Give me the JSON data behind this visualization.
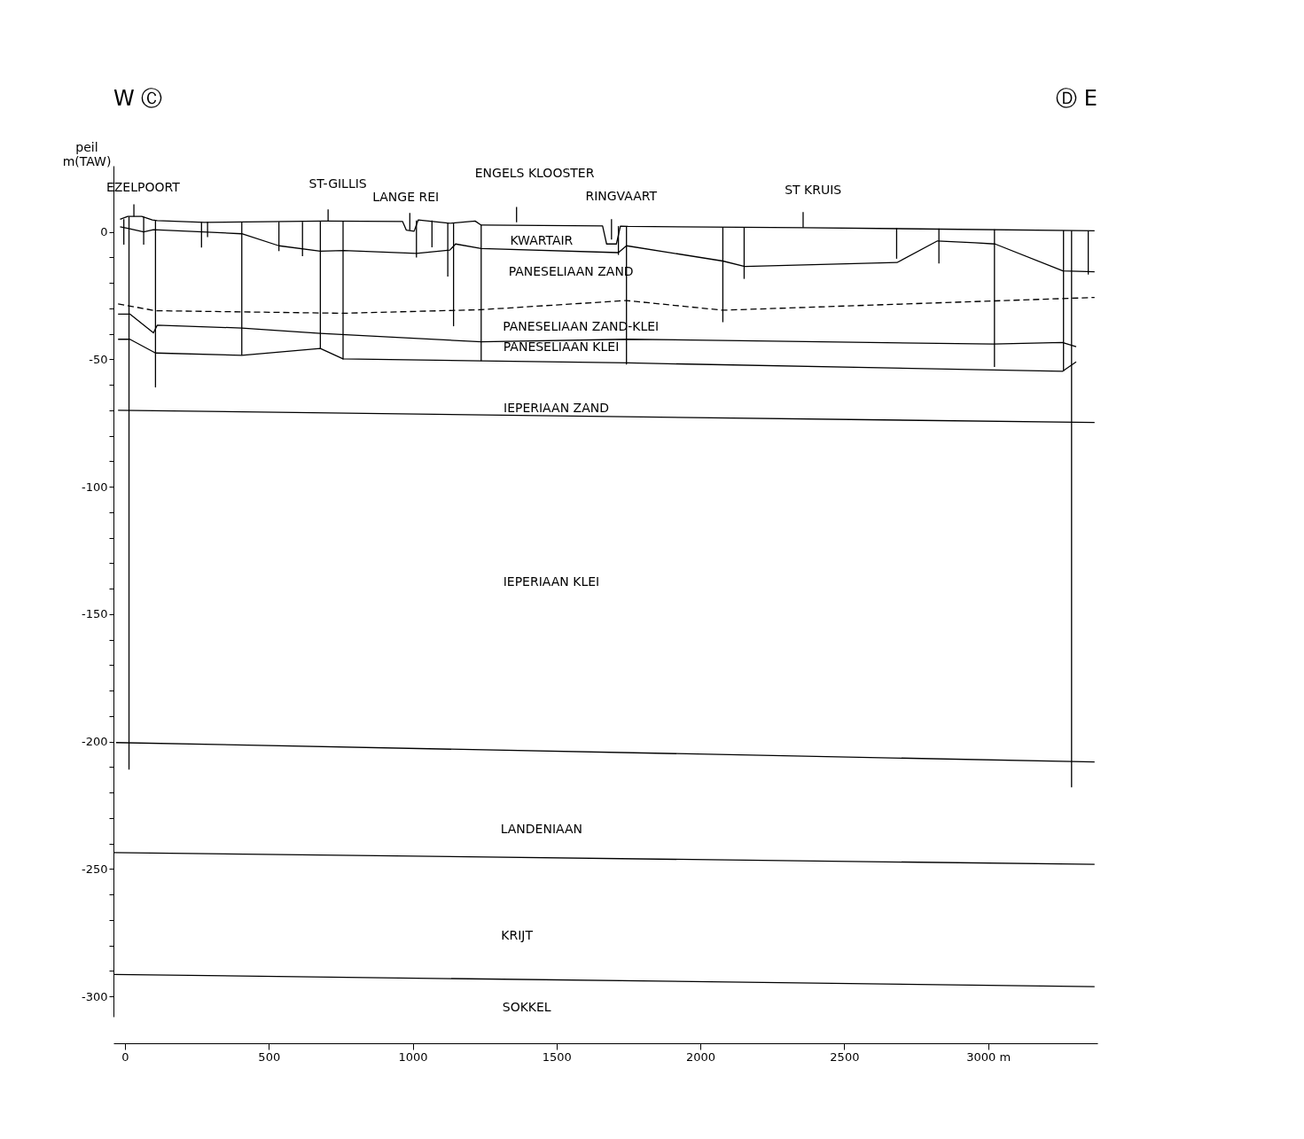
{
  "chart_data": {
    "type": "line",
    "ylabel": "peil m(TAW)",
    "xlim": [
      -40,
      3380
    ],
    "ylim": [
      -308,
      26
    ],
    "xticks": [
      0,
      500,
      1000,
      1500,
      2000,
      2500,
      {
        "value": 3000,
        "label": "3000 m"
      }
    ],
    "yticks": [
      0,
      {
        "value": -10,
        "label": null
      },
      {
        "value": -20,
        "label": null
      },
      {
        "value": -30,
        "label": null
      },
      {
        "value": -40,
        "label": null
      },
      -50,
      {
        "value": -60,
        "label": null
      },
      {
        "value": -70,
        "label": null
      },
      {
        "value": -80,
        "label": null
      },
      {
        "value": -90,
        "label": null
      },
      -100,
      {
        "value": -110,
        "label": null
      },
      {
        "value": -120,
        "label": null
      },
      {
        "value": -130,
        "label": null
      },
      {
        "value": -140,
        "label": null
      },
      -150,
      {
        "value": -160,
        "label": null
      },
      {
        "value": -170,
        "label": null
      },
      {
        "value": -180,
        "label": null
      },
      {
        "value": -190,
        "label": null
      },
      -200,
      {
        "value": -210,
        "label": null
      },
      {
        "value": -220,
        "label": null
      },
      {
        "value": -230,
        "label": null
      },
      {
        "value": -240,
        "label": null
      },
      -250,
      {
        "value": -260,
        "label": null
      },
      {
        "value": -270,
        "label": null
      },
      {
        "value": -280,
        "label": null
      },
      {
        "value": -290,
        "label": null
      },
      -300
    ],
    "series": [
      {
        "color": "#000000",
        "x": [
          -17,
          10,
          58,
          95,
          112,
          276,
          692,
          965,
          978,
          1005,
          1019,
          1128,
          1217,
          1238,
          1660,
          1674,
          1708,
          1722,
          1748,
          2360,
          3370
        ],
        "values": [
          5.0,
          6.1,
          6.1,
          4.7,
          4.5,
          3.8,
          4.3,
          4.1,
          0.7,
          0.3,
          4.7,
          3.4,
          4.3,
          2.7,
          2.4,
          -4.7,
          -4.7,
          2.3,
          2.2,
          1.7,
          0.5
        ]
      },
      {
        "color": "#000000",
        "x": [
          -17,
          10,
          65,
          99,
          406,
          535,
          679,
          760,
          1013,
          1129,
          1149,
          1238,
          1715,
          1743,
          2078,
          2154,
          2683,
          2824,
          2954,
          3024,
          3260,
          3370
        ],
        "values": [
          2.0,
          1.4,
          0,
          0.9,
          -0.7,
          -5.4,
          -7.5,
          -7.3,
          -8.4,
          -7.1,
          -4.7,
          -6.5,
          -8.1,
          -5.4,
          -11.4,
          -13.5,
          -12.0,
          -3.5,
          -4.2,
          -4.7,
          -15.3,
          -15.6
        ]
      },
      {
        "color": "#000000",
        "line_style": "dashed",
        "x": [
          -24,
          106,
          760,
          1238,
          1743,
          2078,
          3370
        ],
        "values": [
          -28.2,
          -30.9,
          -31.9,
          -30.5,
          -26.9,
          -30.7,
          -25.7
        ]
      },
      {
        "color": "#000000",
        "x": [
          -24,
          17,
          99,
          112,
          406,
          679,
          1238,
          1748,
          3018,
          3258,
          3306
        ],
        "values": [
          -32.2,
          -32.2,
          -39.6,
          -36.6,
          -37.7,
          -39.8,
          -43.1,
          -42.1,
          -44.0,
          -43.4,
          -45.0
        ]
      },
      {
        "color": "#000000",
        "x": [
          -24,
          17,
          106,
          406,
          679,
          758,
          1238,
          1748,
          3258,
          3306
        ],
        "values": [
          -42.1,
          -42.1,
          -47.5,
          -48.4,
          -45.7,
          -49.8,
          -50.6,
          -51.4,
          -54.7,
          -51.0
        ]
      },
      {
        "color": "#000000",
        "x": [
          -24,
          3370
        ],
        "values": [
          -70.0,
          -74.8
        ]
      },
      {
        "color": "#000000",
        "x": [
          -31,
          3370
        ],
        "values": [
          -200.4,
          -208.0
        ]
      },
      {
        "color": "#000000",
        "x": [
          -38,
          3370
        ],
        "values": [
          -243.6,
          -248.2
        ]
      },
      {
        "color": "#000000",
        "x": [
          -38,
          3370
        ],
        "values": [
          -291.4,
          -296.2
        ]
      },
      {
        "color": "#000000",
        "x": [
          14,
          14
        ],
        "values": [
          6.0,
          -211
        ]
      },
      {
        "color": "#000000",
        "x": [
          3290,
          3290
        ],
        "values": [
          0.5,
          -218
        ]
      },
      {
        "color": "#000000",
        "x": [
          -4,
          -4
        ],
        "values": [
          5.0,
          -5.0
        ]
      },
      {
        "color": "#000000",
        "x": [
          65,
          65
        ],
        "values": [
          6.0,
          -5.0
        ]
      },
      {
        "color": "#000000",
        "x": [
          106,
          106
        ],
        "values": [
          4.5,
          -61
        ]
      },
      {
        "color": "#000000",
        "x": [
          266,
          266
        ],
        "values": [
          4.0,
          -6.1
        ]
      },
      {
        "color": "#000000",
        "x": [
          287,
          287
        ],
        "values": [
          4.0,
          -2.0
        ]
      },
      {
        "color": "#000000",
        "x": [
          406,
          406
        ],
        "values": [
          3.8,
          -48.4
        ]
      },
      {
        "color": "#000000",
        "x": [
          535,
          535
        ],
        "values": [
          4.0,
          -7.5
        ]
      },
      {
        "color": "#000000",
        "x": [
          617,
          617
        ],
        "values": [
          4.0,
          -9.5
        ]
      },
      {
        "color": "#000000",
        "x": [
          679,
          679
        ],
        "values": [
          4.3,
          -46
        ]
      },
      {
        "color": "#000000",
        "x": [
          758,
          758
        ],
        "values": [
          4.3,
          -50
        ]
      },
      {
        "color": "#000000",
        "x": [
          1013,
          1013
        ],
        "values": [
          4.5,
          -10
        ]
      },
      {
        "color": "#000000",
        "x": [
          1067,
          1067
        ],
        "values": [
          4.5,
          -6
        ]
      },
      {
        "color": "#000000",
        "x": [
          1122,
          1122
        ],
        "values": [
          3.5,
          -17.5
        ]
      },
      {
        "color": "#000000",
        "x": [
          1142,
          1142
        ],
        "values": [
          3.5,
          -37
        ]
      },
      {
        "color": "#000000",
        "x": [
          1238,
          1238
        ],
        "values": [
          2.7,
          -50.6
        ]
      },
      {
        "color": "#000000",
        "x": [
          1715,
          1715
        ],
        "values": [
          2.3,
          -9
        ]
      },
      {
        "color": "#000000",
        "x": [
          1743,
          1743
        ],
        "values": [
          2.3,
          -52
        ]
      },
      {
        "color": "#000000",
        "x": [
          2078,
          2078
        ],
        "values": [
          2.0,
          -35.4
        ]
      },
      {
        "color": "#000000",
        "x": [
          2152,
          2152
        ],
        "values": [
          2.0,
          -18.4
        ]
      },
      {
        "color": "#000000",
        "x": [
          2682,
          2682
        ],
        "values": [
          1.6,
          -10.5
        ]
      },
      {
        "color": "#000000",
        "x": [
          2829,
          2829
        ],
        "values": [
          1.4,
          -12.4
        ]
      },
      {
        "color": "#000000",
        "x": [
          3022,
          3022
        ],
        "values": [
          1.0,
          -53.0
        ]
      },
      {
        "color": "#000000",
        "x": [
          3262,
          3262
        ],
        "values": [
          0.6,
          -54.7
        ]
      },
      {
        "color": "#000000",
        "x": [
          3348,
          3348
        ],
        "values": [
          0.5,
          -16.7
        ]
      },
      {
        "color": "#000000",
        "x": [
          31,
          31
        ],
        "values": [
          6.1,
          10.9
        ]
      },
      {
        "color": "#000000",
        "x": [
          706,
          706
        ],
        "values": [
          4.3,
          8.9
        ]
      },
      {
        "color": "#000000",
        "x": [
          990,
          990
        ],
        "values": [
          0.7,
          7.5
        ]
      },
      {
        "color": "#000000",
        "x": [
          1361,
          1361
        ],
        "values": [
          3.8,
          9.8
        ]
      },
      {
        "color": "#000000",
        "x": [
          1691,
          1691
        ],
        "values": [
          -3.0,
          5.0
        ]
      },
      {
        "color": "#000000",
        "x": [
          2357,
          2357
        ],
        "values": [
          1.7,
          7.8
        ]
      }
    ],
    "annotations": [
      "W Ⓒ",
      "Ⓓ E",
      "EZELPOORT",
      "ST-GILLIS",
      "LANGE REI",
      "ENGELS KLOOSTER",
      "RINGVAART",
      "ST KRUIS",
      "KWARTAIR",
      "PANESELIAAN ZAND",
      "PANESELIAAN ZAND-KLEI",
      "PANESELIAAN KLEI",
      "IEPERIAAN ZAND",
      "IEPERIAAN KLEI",
      "LANDENIAAN",
      "KRIJT",
      "SOKKEL"
    ]
  }
}
